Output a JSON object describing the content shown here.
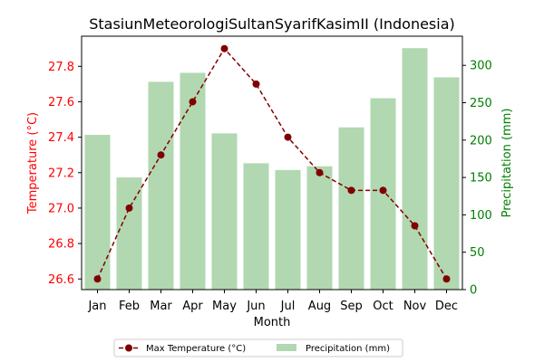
{
  "chart_data": {
    "type": "bar+line",
    "title": "StasiunMeteorologiSultanSyarifKasimII (Indonesia)",
    "xlabel": "Month",
    "ylabel_left": "Temperature (°C)",
    "ylabel_right": "Precipitation (mm)",
    "categories": [
      "Jan",
      "Feb",
      "Mar",
      "Apr",
      "May",
      "Jun",
      "Jul",
      "Aug",
      "Sep",
      "Oct",
      "Nov",
      "Dec"
    ],
    "series": [
      {
        "name": "Max Temperature (°C)",
        "type": "line",
        "axis": "left",
        "color": "#800000",
        "values": [
          26.6,
          27.0,
          27.3,
          27.6,
          27.9,
          27.7,
          27.4,
          27.2,
          27.1,
          27.1,
          26.9,
          26.6
        ]
      },
      {
        "name": "Precipitation (mm)",
        "type": "bar",
        "axis": "right",
        "color": "#b1d8b1",
        "values": [
          207,
          150,
          278,
          290,
          209,
          169,
          160,
          165,
          217,
          256,
          323,
          284
        ]
      }
    ],
    "y_left_lim": [
      26.54,
      27.97
    ],
    "y_left_ticks": [
      "26.6",
      "26.8",
      "27.0",
      "27.2",
      "27.4",
      "27.6",
      "27.8"
    ],
    "y_left_color": "#ff0000",
    "y_right_lim": [
      0,
      339
    ],
    "y_right_ticks": [
      "0",
      "50",
      "100",
      "150",
      "200",
      "250",
      "300"
    ],
    "y_right_color": "#008000",
    "grid": false,
    "legend_position": "bottom-center"
  }
}
